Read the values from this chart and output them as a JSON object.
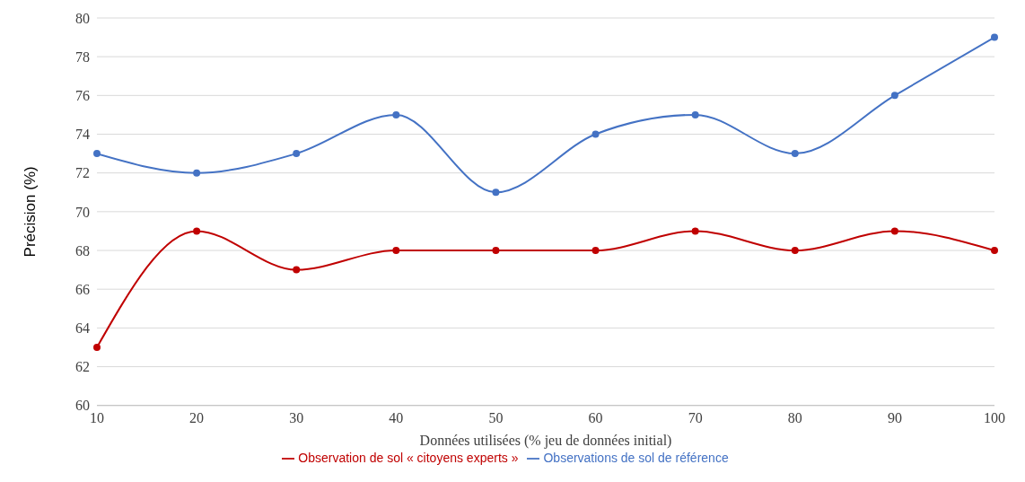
{
  "chart_data": {
    "type": "line",
    "xlabel": "Données utilisées (% jeu de données initial)",
    "ylabel": "Précision  (%)",
    "x": [
      10,
      20,
      30,
      40,
      50,
      60,
      70,
      80,
      90,
      100
    ],
    "series": [
      {
        "name": "Observations de sol de référence",
        "color": "#4472c4",
        "values": [
          73,
          72,
          73,
          75,
          71,
          74,
          75,
          73,
          76,
          79
        ]
      },
      {
        "name": "Observation de sol « citoyens experts »",
        "color": "#c00000",
        "values": [
          63,
          69,
          67,
          68,
          68,
          68,
          69,
          68,
          69,
          68
        ]
      }
    ],
    "xlim": [
      10,
      100
    ],
    "xticks": [
      10,
      20,
      30,
      40,
      50,
      60,
      70,
      80,
      90,
      100
    ],
    "ylim": [
      60,
      80
    ],
    "yticks": [
      60,
      62,
      64,
      66,
      68,
      70,
      72,
      74,
      76,
      78,
      80
    ],
    "grid": "y",
    "legend": "bottom",
    "marker": "circle",
    "line_style": "solid"
  }
}
